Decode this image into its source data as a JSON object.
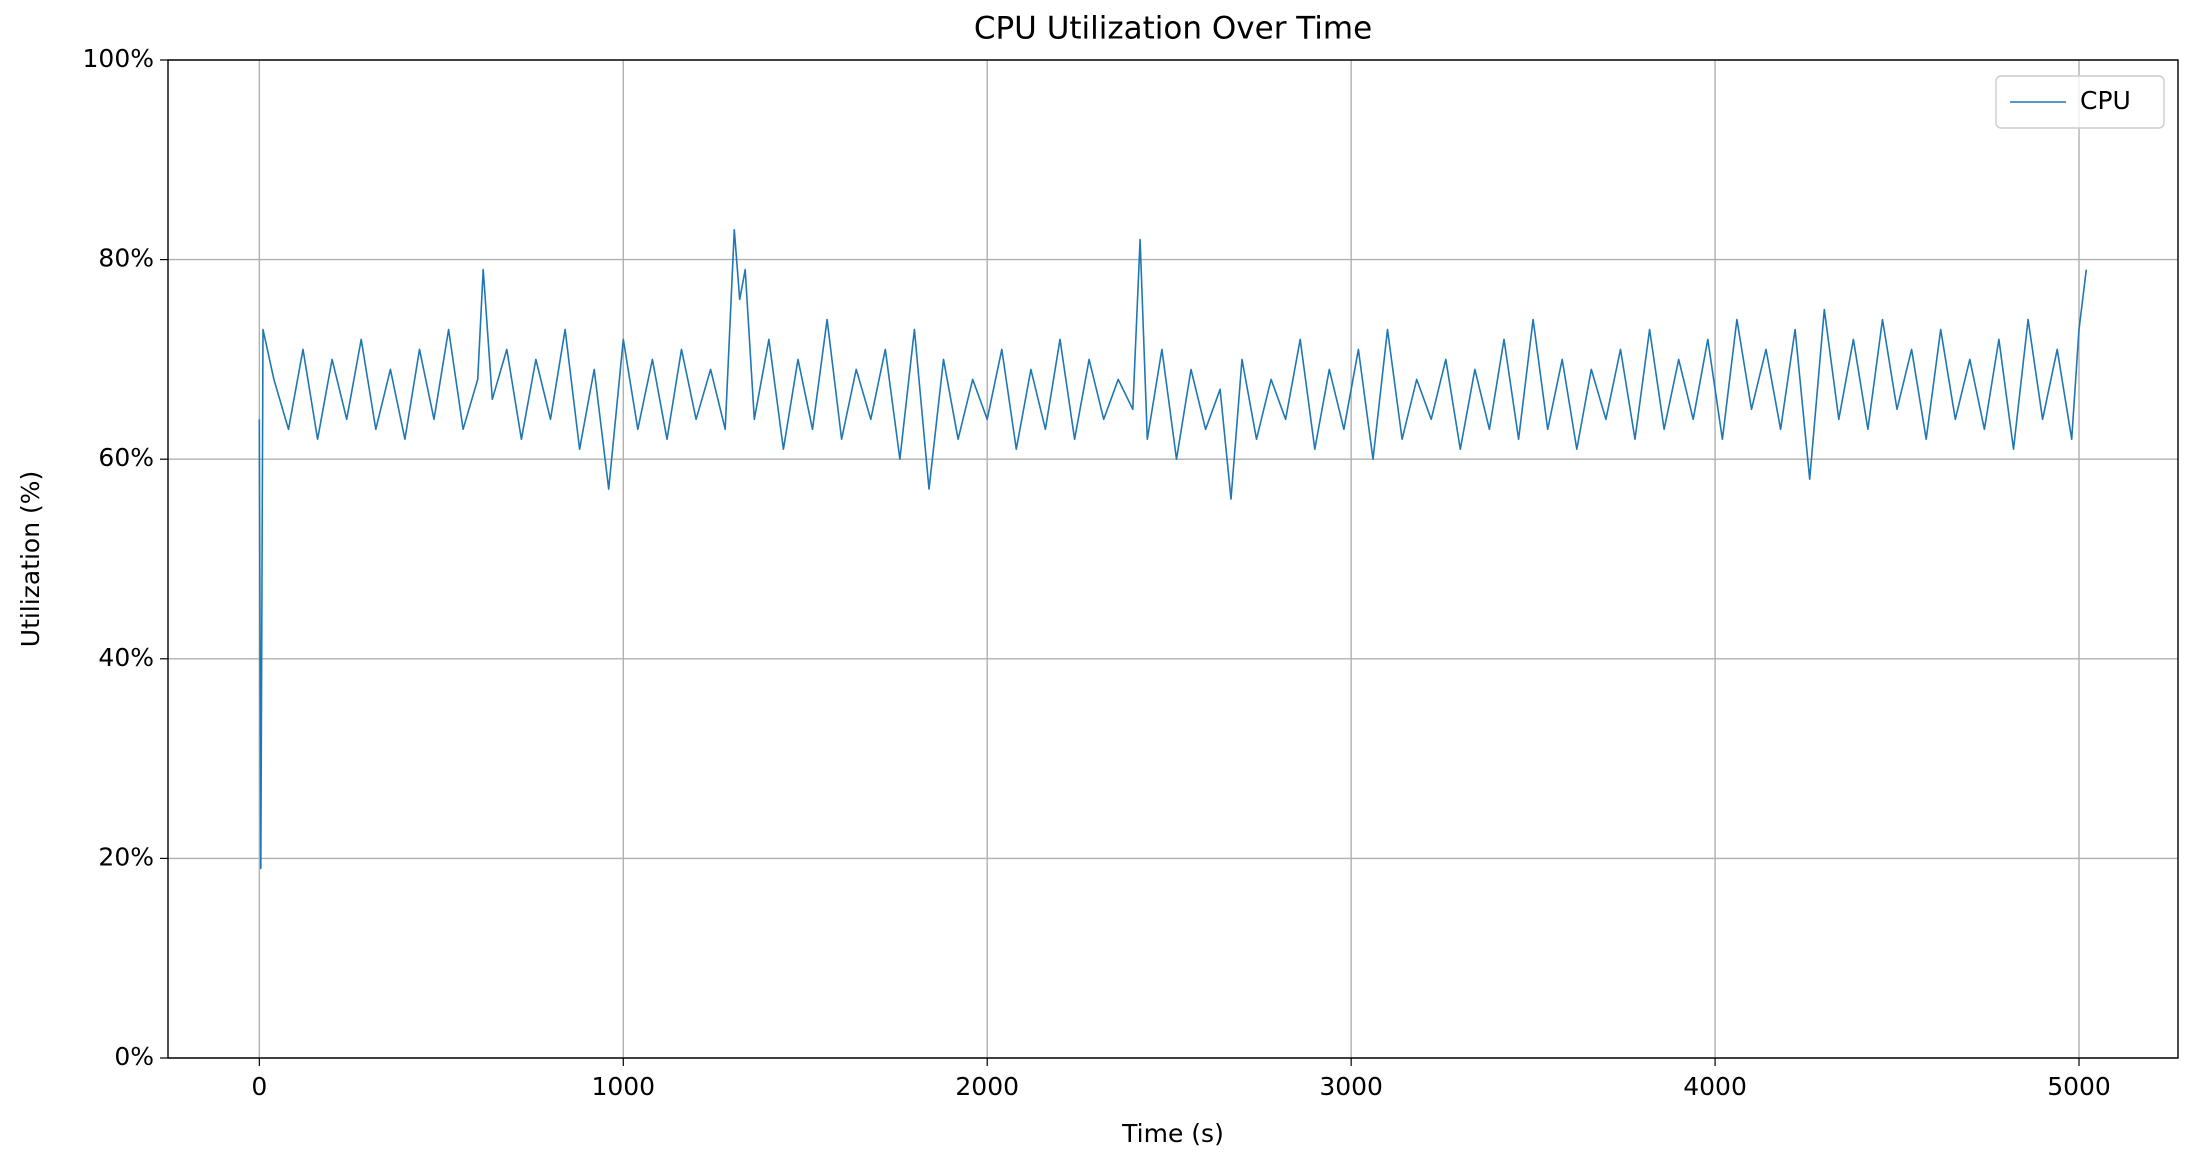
{
  "chart_data": {
    "type": "line",
    "title": "CPU Utilization Over Time",
    "x_label": "Time (s)",
    "y_label": "Utilization (%)",
    "x": [
      0,
      4,
      10,
      40,
      80,
      120,
      160,
      200,
      240,
      280,
      320,
      360,
      400,
      440,
      480,
      520,
      560,
      600,
      615,
      640,
      680,
      720,
      760,
      800,
      840,
      880,
      920,
      960,
      1000,
      1040,
      1080,
      1120,
      1160,
      1200,
      1240,
      1280,
      1305,
      1320,
      1335,
      1360,
      1400,
      1440,
      1480,
      1520,
      1560,
      1600,
      1640,
      1680,
      1720,
      1760,
      1800,
      1840,
      1880,
      1920,
      1960,
      2000,
      2040,
      2080,
      2120,
      2160,
      2200,
      2240,
      2280,
      2320,
      2360,
      2400,
      2420,
      2440,
      2480,
      2520,
      2560,
      2600,
      2640,
      2670,
      2700,
      2740,
      2780,
      2820,
      2860,
      2900,
      2940,
      2980,
      3020,
      3060,
      3100,
      3140,
      3180,
      3220,
      3260,
      3300,
      3340,
      3380,
      3420,
      3460,
      3500,
      3540,
      3580,
      3620,
      3660,
      3700,
      3740,
      3780,
      3820,
      3860,
      3900,
      3940,
      3980,
      4020,
      4060,
      4100,
      4140,
      4180,
      4220,
      4260,
      4300,
      4340,
      4380,
      4420,
      4460,
      4500,
      4540,
      4580,
      4620,
      4660,
      4700,
      4740,
      4780,
      4820,
      4860,
      4900,
      4940,
      4980,
      5000,
      5020
    ],
    "series": [
      {
        "name": "CPU",
        "color": "#1f77b4",
        "values": [
          64,
          19,
          73,
          68,
          63,
          71,
          62,
          70,
          64,
          72,
          63,
          69,
          62,
          71,
          64,
          73,
          63,
          68,
          79,
          66,
          71,
          62,
          70,
          64,
          73,
          61,
          69,
          57,
          72,
          63,
          70,
          62,
          71,
          64,
          69,
          63,
          83,
          76,
          79,
          64,
          72,
          61,
          70,
          63,
          74,
          62,
          69,
          64,
          71,
          60,
          73,
          57,
          70,
          62,
          68,
          64,
          71,
          61,
          69,
          63,
          72,
          62,
          70,
          64,
          68,
          65,
          82,
          62,
          71,
          60,
          69,
          63,
          67,
          56,
          70,
          62,
          68,
          64,
          72,
          61,
          69,
          63,
          71,
          60,
          73,
          62,
          68,
          64,
          70,
          61,
          69,
          63,
          72,
          62,
          74,
          63,
          70,
          61,
          69,
          64,
          71,
          62,
          73,
          63,
          70,
          64,
          72,
          62,
          74,
          65,
          71,
          63,
          73,
          58,
          75,
          64,
          72,
          63,
          74,
          65,
          71,
          62,
          73,
          64,
          70,
          63,
          72,
          61,
          74,
          64,
          71,
          62,
          73,
          79
        ]
      }
    ],
    "xlim": [
      -251,
      5272
    ],
    "xticks": [
      0,
      1000,
      2000,
      3000,
      4000,
      5000
    ],
    "ylim": [
      0,
      100
    ],
    "yticks": [
      {
        "value": 0,
        "label": "0%"
      },
      {
        "value": 20,
        "label": "20%"
      },
      {
        "value": 40,
        "label": "40%"
      },
      {
        "value": 60,
        "label": "60%"
      },
      {
        "value": 80,
        "label": "80%"
      },
      {
        "value": 100,
        "label": "100%"
      }
    ],
    "grid": true,
    "legend": "upper right"
  }
}
